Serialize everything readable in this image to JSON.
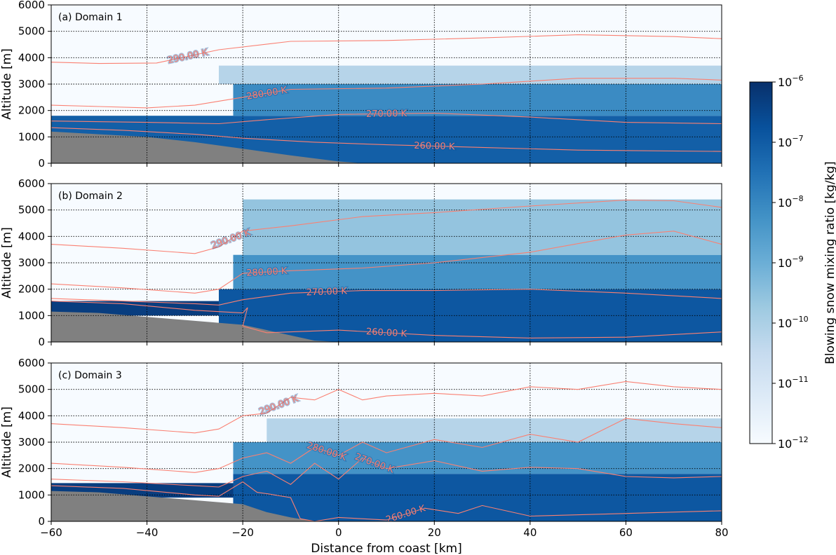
{
  "colors": {
    "contour": "#fa8072",
    "terrain": "#808080",
    "cmap_low": "#f7fbff",
    "cmap_high": "#08306b"
  },
  "colorbar": {
    "label": "Blowing snow mixing ratio [kg/kg]",
    "scale": "log",
    "range": [
      1e-12,
      1e-06
    ],
    "ticks": [
      {
        "base": "10",
        "exp": "−6"
      },
      {
        "base": "10",
        "exp": "−7"
      },
      {
        "base": "10",
        "exp": "−8"
      },
      {
        "base": "10",
        "exp": "−9"
      },
      {
        "base": "10",
        "exp": "−10"
      },
      {
        "base": "10",
        "exp": "−11"
      },
      {
        "base": "10",
        "exp": "−12"
      }
    ]
  },
  "chart_data": [
    {
      "type": "heatmap",
      "label": "(a) Domain 1",
      "xlabel": "",
      "ylabel": "Altitude [m]",
      "xlim": [
        -60,
        80
      ],
      "ylim": [
        0,
        6000
      ],
      "xticks": [
        "−60",
        "−40",
        "−20",
        "0",
        "20",
        "40",
        "60",
        "80"
      ],
      "yticks": [
        "0",
        "1000",
        "2000",
        "3000",
        "4000",
        "5000",
        "6000"
      ],
      "grid": true,
      "terrain": {
        "x": [
          -60,
          -50,
          -40,
          -30,
          -20,
          -10,
          0,
          5
        ],
        "y": [
          1200,
          1100,
          1000,
          800,
          550,
          300,
          70,
          0
        ]
      },
      "snow_layer": [
        {
          "x0": -60,
          "x1": -20,
          "y0": 1100,
          "y1": 1700,
          "level": 0.95
        },
        {
          "x0": -60,
          "x1": 80,
          "y0": 0,
          "y1": 1800,
          "level": 0.82
        },
        {
          "x0": -22,
          "x1": 80,
          "y0": 1800,
          "y1": 3000,
          "level": 0.65
        },
        {
          "x0": -25,
          "x1": 80,
          "y0": 3000,
          "y1": 3700,
          "level": 0.3
        }
      ],
      "contours": [
        {
          "label": "290.00 K",
          "x": [
            -60,
            -50,
            -38,
            -25,
            -10,
            10,
            30,
            50,
            70,
            80
          ],
          "y": [
            3830,
            3780,
            3800,
            4300,
            4620,
            4650,
            4750,
            4870,
            4800,
            4720
          ]
        },
        {
          "label": "280.00 K",
          "x": [
            -60,
            -50,
            -40,
            -30,
            -20,
            -10,
            10,
            30,
            50,
            70,
            80
          ],
          "y": [
            2200,
            2150,
            2100,
            2200,
            2500,
            2800,
            2850,
            3000,
            3220,
            3220,
            3150
          ]
        },
        {
          "label": "270.00 K",
          "x": [
            -60,
            -40,
            -25,
            -15,
            0,
            20,
            40,
            60,
            80
          ],
          "y": [
            1600,
            1550,
            1500,
            1650,
            1850,
            1900,
            1750,
            1550,
            1500
          ]
        },
        {
          "label": "260.00 K",
          "x": [
            -60,
            -45,
            -30,
            -20,
            -5,
            10,
            30,
            50,
            80
          ],
          "y": [
            1350,
            1250,
            1100,
            950,
            800,
            700,
            600,
            500,
            450
          ]
        }
      ]
    },
    {
      "type": "heatmap",
      "label": "(b) Domain 2",
      "xlabel": "",
      "ylabel": "Altitude [m]",
      "xlim": [
        -60,
        80
      ],
      "ylim": [
        0,
        6000
      ],
      "xticks": [
        "−60",
        "−40",
        "−20",
        "0",
        "20",
        "40",
        "60",
        "80"
      ],
      "yticks": [
        "0",
        "1000",
        "2000",
        "3000",
        "4000",
        "5000",
        "6000"
      ],
      "grid": true,
      "terrain": {
        "x": [
          -60,
          -50,
          -40,
          -30,
          -20,
          -10,
          -5,
          0
        ],
        "y": [
          1150,
          1100,
          950,
          800,
          650,
          250,
          50,
          0
        ]
      },
      "snow_layer": [
        {
          "x0": -60,
          "x1": -20,
          "y0": 1000,
          "y1": 1550,
          "level": 0.95
        },
        {
          "x0": -25,
          "x1": 80,
          "y0": 0,
          "y1": 2000,
          "level": 0.85
        },
        {
          "x0": -22,
          "x1": 80,
          "y0": 2000,
          "y1": 3300,
          "level": 0.62
        },
        {
          "x0": -20,
          "x1": 80,
          "y0": 3300,
          "y1": 5400,
          "level": 0.4
        }
      ],
      "contours": [
        {
          "label": "290.00 K",
          "x": [
            -60,
            -45,
            -30,
            -25,
            -20,
            -10,
            5,
            20,
            40,
            60,
            70,
            80
          ],
          "y": [
            3700,
            3550,
            3350,
            3600,
            4200,
            4400,
            4750,
            4900,
            5150,
            5380,
            5350,
            5100
          ]
        },
        {
          "label": "280.00 K",
          "x": [
            -60,
            -45,
            -30,
            -25,
            -20,
            -10,
            5,
            20,
            40,
            60,
            70,
            80
          ],
          "y": [
            2200,
            2050,
            1850,
            2000,
            2600,
            2700,
            2800,
            3000,
            3400,
            4050,
            4200,
            3700
          ]
        },
        {
          "label": "270.00 K",
          "x": [
            -60,
            -45,
            -30,
            -25,
            -20,
            -10,
            5,
            20,
            40,
            60,
            80
          ],
          "y": [
            1650,
            1550,
            1450,
            1400,
            1600,
            1850,
            1950,
            1950,
            2000,
            1850,
            1650
          ]
        },
        {
          "label": "260.00 K",
          "x": [
            -60,
            -45,
            -30,
            -20,
            -19,
            -20,
            -15,
            0,
            20,
            40,
            60,
            80
          ],
          "y": [
            1550,
            1450,
            1200,
            1100,
            1300,
            600,
            350,
            450,
            250,
            150,
            180,
            380
          ]
        }
      ]
    },
    {
      "type": "heatmap",
      "label": "(c) Domain 3",
      "xlabel": "Distance from coast [km]",
      "ylabel": "Altitude [m]",
      "xlim": [
        -60,
        80
      ],
      "ylim": [
        0,
        6000
      ],
      "xticks": [
        "−60",
        "−40",
        "−20",
        "0",
        "20",
        "40",
        "60",
        "80"
      ],
      "yticks": [
        "0",
        "1000",
        "2000",
        "3000",
        "4000",
        "5000",
        "6000"
      ],
      "grid": true,
      "terrain": {
        "x": [
          -60,
          -50,
          -40,
          -30,
          -20,
          -15,
          -10,
          -5
        ],
        "y": [
          1150,
          1100,
          950,
          800,
          650,
          350,
          150,
          0
        ]
      },
      "snow_layer": [
        {
          "x0": -60,
          "x1": -20,
          "y0": 900,
          "y1": 1450,
          "level": 0.95
        },
        {
          "x0": -22,
          "x1": 80,
          "y0": 0,
          "y1": 1800,
          "level": 0.85
        },
        {
          "x0": -22,
          "x1": 80,
          "y0": 1800,
          "y1": 3000,
          "level": 0.62
        },
        {
          "x0": -15,
          "x1": 80,
          "y0": 3000,
          "y1": 3900,
          "level": 0.3
        }
      ],
      "contours": [
        {
          "label": "290.00 K",
          "x": [
            -60,
            -45,
            -30,
            -25,
            -20,
            -15,
            -10,
            -5,
            0,
            5,
            10,
            20,
            30,
            40,
            50,
            60,
            70,
            80
          ],
          "y": [
            3700,
            3550,
            3350,
            3500,
            4000,
            4100,
            4700,
            4600,
            5000,
            4600,
            4750,
            4850,
            4750,
            5100,
            5000,
            5300,
            5100,
            5000
          ]
        },
        {
          "label": "280.00 K",
          "x": [
            -60,
            -45,
            -30,
            -25,
            -20,
            -15,
            -10,
            -5,
            0,
            5,
            10,
            20,
            30,
            40,
            50,
            60,
            70,
            80
          ],
          "y": [
            2200,
            2050,
            1850,
            2000,
            2400,
            2600,
            2200,
            2800,
            2500,
            3000,
            2600,
            3100,
            2800,
            3300,
            3000,
            3900,
            3700,
            3550
          ]
        },
        {
          "label": "270.00 K",
          "x": [
            -60,
            -45,
            -30,
            -25,
            -20,
            -15,
            -10,
            -5,
            0,
            5,
            10,
            20,
            30,
            40,
            50,
            60,
            70,
            80
          ],
          "y": [
            1600,
            1500,
            1350,
            1300,
            1700,
            1900,
            1400,
            2200,
            1600,
            2400,
            2000,
            2300,
            1900,
            2050,
            2000,
            1700,
            1650,
            1700
          ]
        },
        {
          "label": "260.00 K",
          "x": [
            -60,
            -45,
            -30,
            -25,
            -20,
            -17,
            -15,
            -10,
            -8,
            -5,
            0,
            10,
            18,
            25,
            30,
            40,
            60,
            80
          ],
          "y": [
            1350,
            1250,
            1000,
            950,
            1500,
            1100,
            1050,
            900,
            100,
            0,
            150,
            50,
            500,
            300,
            600,
            200,
            300,
            400
          ]
        }
      ]
    }
  ]
}
